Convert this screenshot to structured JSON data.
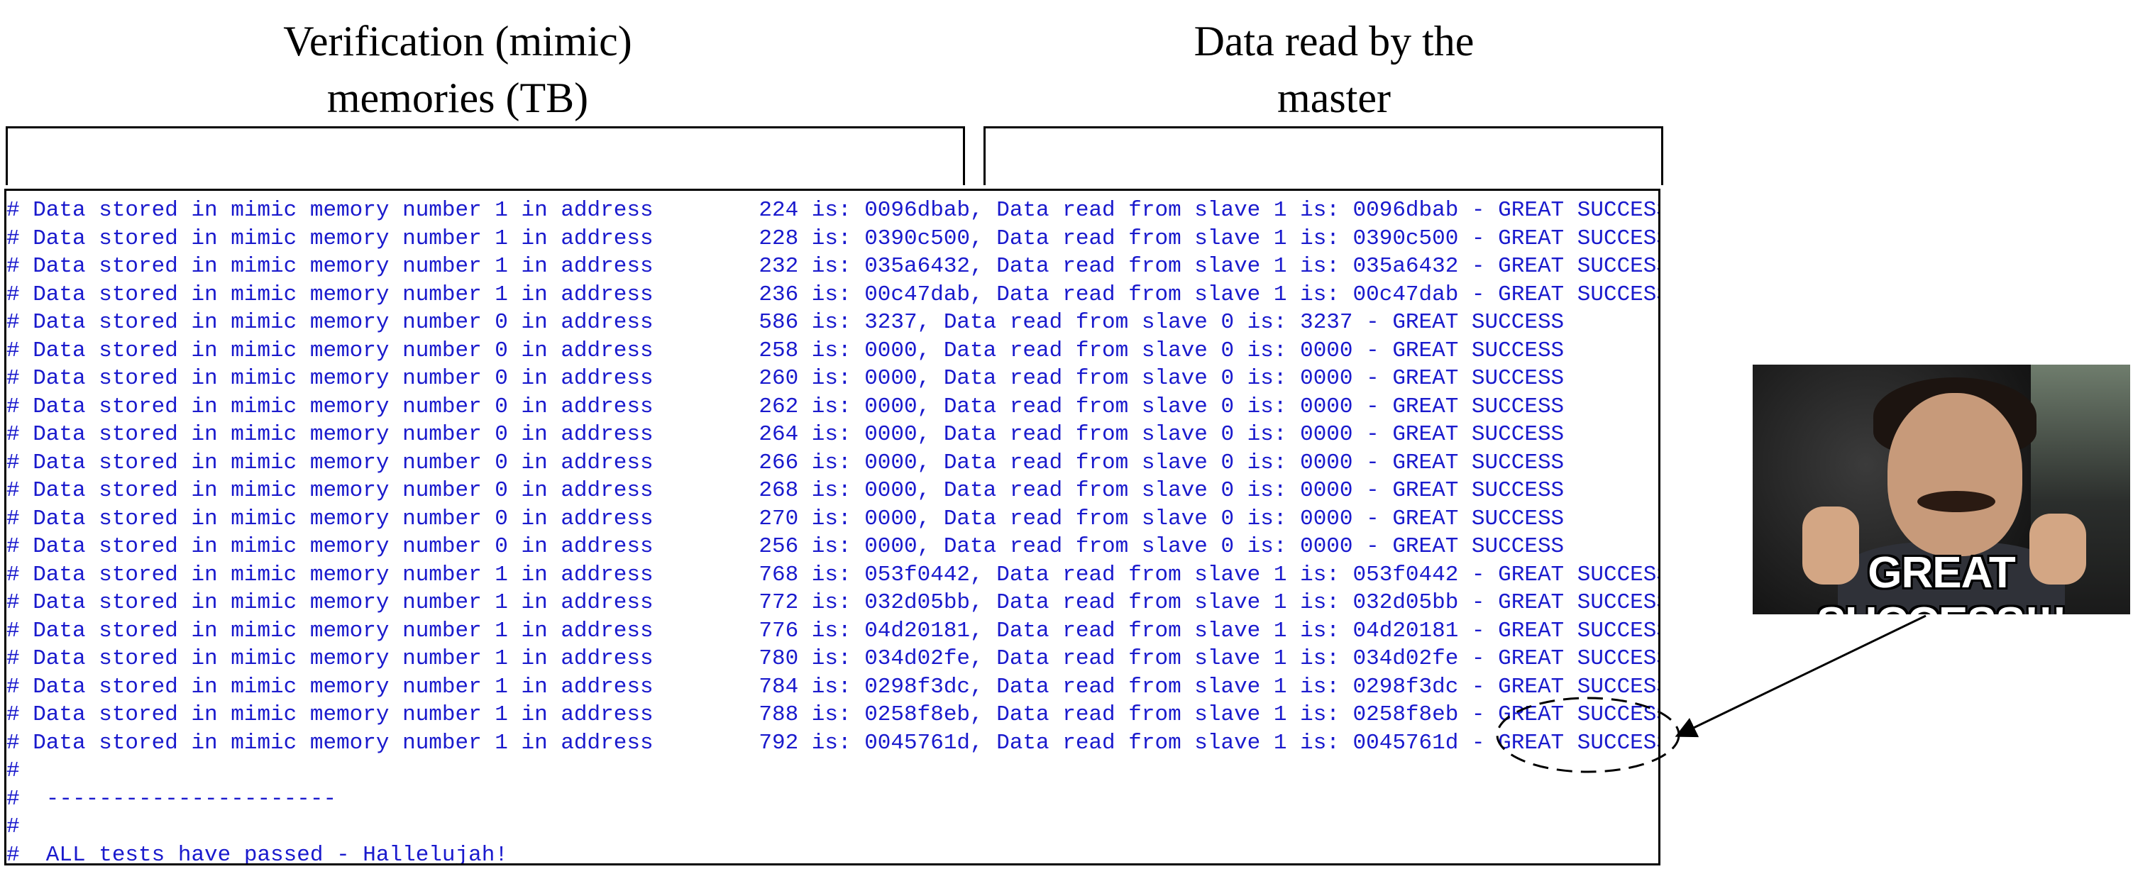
{
  "labels": {
    "left_line1": "Verification (mimic)",
    "left_line2": "memories (TB)",
    "right_line1": "Data read by the",
    "right_line2": "master"
  },
  "console": {
    "lines": [
      "# Data stored in mimic memory number 1 in address        224 is: 0096dbab, Data read from slave 1 is: 0096dbab - GREAT SUCCESS",
      "# Data stored in mimic memory number 1 in address        228 is: 0390c500, Data read from slave 1 is: 0390c500 - GREAT SUCCESS",
      "# Data stored in mimic memory number 1 in address        232 is: 035a6432, Data read from slave 1 is: 035a6432 - GREAT SUCCESS",
      "# Data stored in mimic memory number 1 in address        236 is: 00c47dab, Data read from slave 1 is: 00c47dab - GREAT SUCCESS",
      "# Data stored in mimic memory number 0 in address        586 is: 3237, Data read from slave 0 is: 3237 - GREAT SUCCESS",
      "# Data stored in mimic memory number 0 in address        258 is: 0000, Data read from slave 0 is: 0000 - GREAT SUCCESS",
      "# Data stored in mimic memory number 0 in address        260 is: 0000, Data read from slave 0 is: 0000 - GREAT SUCCESS",
      "# Data stored in mimic memory number 0 in address        262 is: 0000, Data read from slave 0 is: 0000 - GREAT SUCCESS",
      "# Data stored in mimic memory number 0 in address        264 is: 0000, Data read from slave 0 is: 0000 - GREAT SUCCESS",
      "# Data stored in mimic memory number 0 in address        266 is: 0000, Data read from slave 0 is: 0000 - GREAT SUCCESS",
      "# Data stored in mimic memory number 0 in address        268 is: 0000, Data read from slave 0 is: 0000 - GREAT SUCCESS",
      "# Data stored in mimic memory number 0 in address        270 is: 0000, Data read from slave 0 is: 0000 - GREAT SUCCESS",
      "# Data stored in mimic memory number 0 in address        256 is: 0000, Data read from slave 0 is: 0000 - GREAT SUCCESS",
      "# Data stored in mimic memory number 1 in address        768 is: 053f0442, Data read from slave 1 is: 053f0442 - GREAT SUCCESS",
      "# Data stored in mimic memory number 1 in address        772 is: 032d05bb, Data read from slave 1 is: 032d05bb - GREAT SUCCESS",
      "# Data stored in mimic memory number 1 in address        776 is: 04d20181, Data read from slave 1 is: 04d20181 - GREAT SUCCESS",
      "# Data stored in mimic memory number 1 in address        780 is: 034d02fe, Data read from slave 1 is: 034d02fe - GREAT SUCCESS",
      "# Data stored in mimic memory number 1 in address        784 is: 0298f3dc, Data read from slave 1 is: 0298f3dc - GREAT SUCCESS",
      "# Data stored in mimic memory number 1 in address        788 is: 0258f8eb, Data read from slave 1 is: 0258f8eb - GREAT SUCCESS",
      "# Data stored in mimic memory number 1 in address        792 is: 0045761d, Data read from slave 1 is: 0045761d - GREAT SUCCESS",
      "#",
      "#  ----------------------",
      "#",
      "#  ALL tests have passed - Hallelujah!"
    ],
    "text_color": "#1a1acd"
  },
  "meme": {
    "caption": "GREAT SUCCESS!!!"
  }
}
